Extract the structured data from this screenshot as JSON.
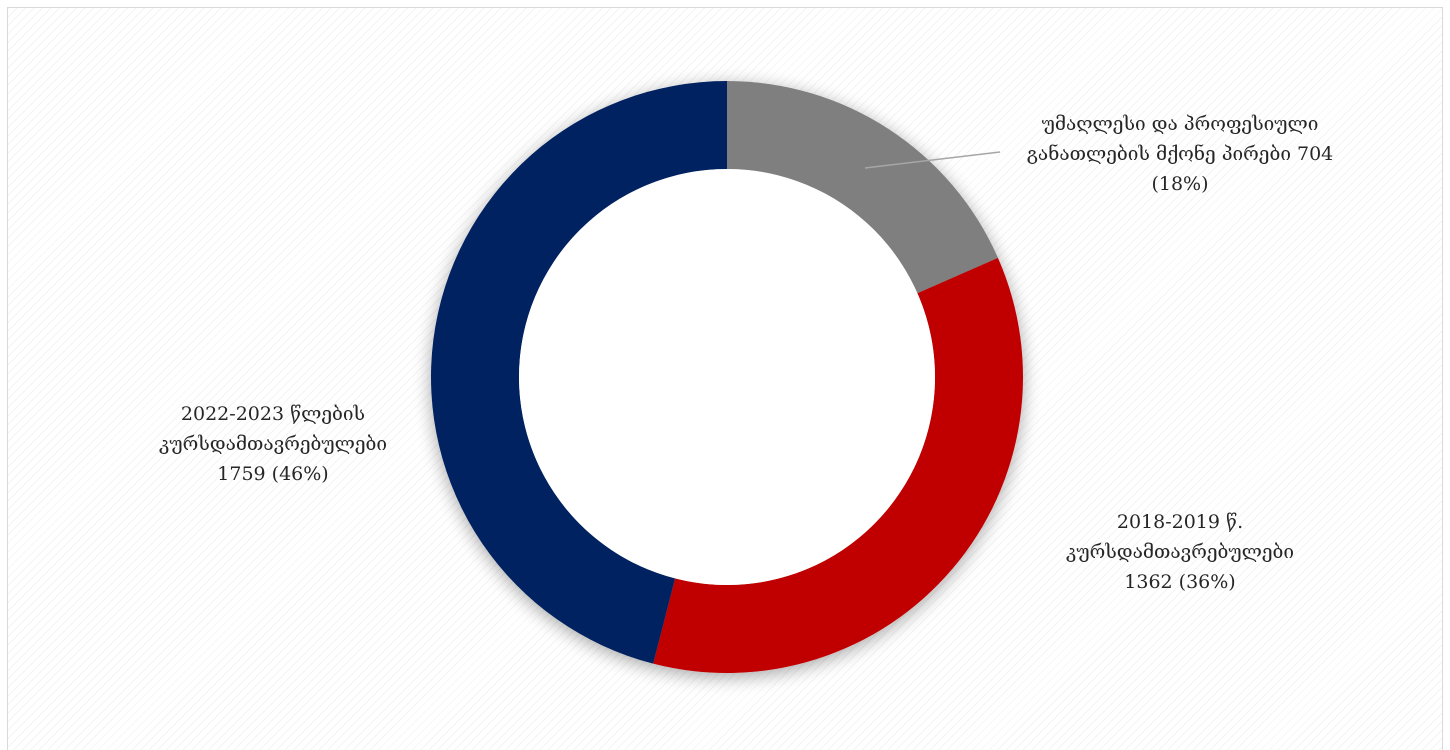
{
  "chart_data": {
    "type": "pie",
    "variant": "doughnut",
    "legend": "none",
    "slices": [
      {
        "label_lines": [
          "უმაღლესი და პროფესიული",
          "განათლების მქონე პირები 704",
          "(18%)"
        ],
        "value": 704,
        "percent": 18,
        "color": "#7f7f7f"
      },
      {
        "label_lines": [
          "2018-2019 წ.",
          "კურსდამთავრებულები",
          "1362 (36%)"
        ],
        "value": 1362,
        "percent": 36,
        "color": "#c00000"
      },
      {
        "label_lines": [
          "2022-2023 წლების",
          "კურსდამთავრებულები",
          "1759 (46%)"
        ],
        "value": 1759,
        "percent": 46,
        "color": "#002060"
      }
    ]
  }
}
